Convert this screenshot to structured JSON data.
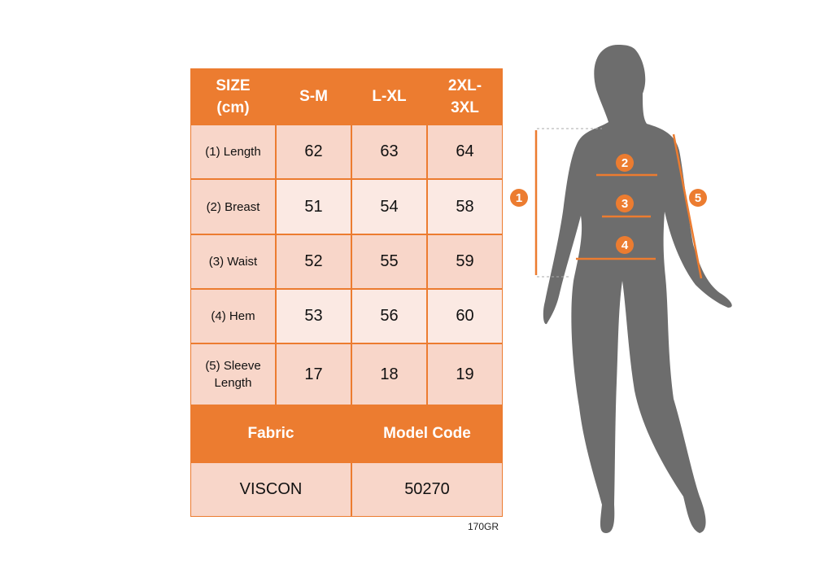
{
  "table": {
    "header": [
      "SIZE\n(cm)",
      "S-M",
      "L-XL",
      "2XL-\n3XL"
    ],
    "rows": [
      {
        "label": "(1) Length",
        "values": [
          "62",
          "63",
          "64"
        ]
      },
      {
        "label": "(2) Breast",
        "values": [
          "51",
          "54",
          "58"
        ]
      },
      {
        "label": "(3) Waist",
        "values": [
          "52",
          "55",
          "59"
        ]
      },
      {
        "label": "(4) Hem",
        "values": [
          "53",
          "56",
          "60"
        ]
      },
      {
        "label": "(5) Sleeve\nLength",
        "values": [
          "17",
          "18",
          "19"
        ]
      }
    ],
    "fabric_label": "Fabric",
    "model_code_label": "Model Code",
    "fabric_value": "VISCON",
    "model_code_value": "50270"
  },
  "note": "170GR",
  "figure": {
    "markers": [
      "1",
      "2",
      "3",
      "4",
      "5"
    ]
  },
  "colors": {
    "accent": "#ec7c30",
    "row_dark": "#f8d6c9",
    "row_light": "#fbe9e3",
    "silhouette": "#6d6d6d"
  }
}
